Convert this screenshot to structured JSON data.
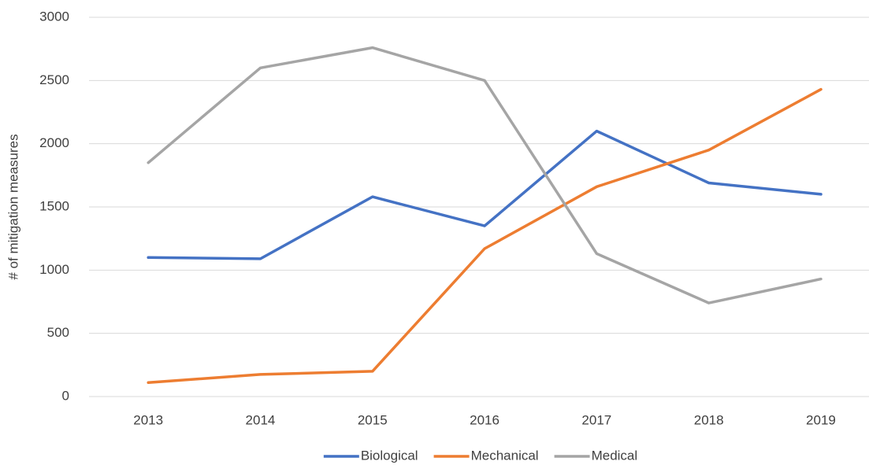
{
  "chart_data": {
    "type": "line",
    "y_label": "# of mitigation measures",
    "categories": [
      "2013",
      "2014",
      "2015",
      "2016",
      "2017",
      "2018",
      "2019"
    ],
    "series": [
      {
        "name": "Biological",
        "color": "#4472c4",
        "values": [
          1100,
          1090,
          1580,
          1350,
          2100,
          1690,
          1600
        ]
      },
      {
        "name": "Mechanical",
        "color": "#ed7d31",
        "values": [
          110,
          175,
          200,
          1170,
          1660,
          1950,
          2430
        ]
      },
      {
        "name": "Medical",
        "color": "#a5a5a5",
        "values": [
          1850,
          2600,
          2760,
          2500,
          1130,
          740,
          930
        ]
      }
    ],
    "ylim": [
      0,
      3000
    ],
    "yticks": [
      0,
      500,
      1000,
      1500,
      2000,
      2500,
      3000
    ],
    "grid": true,
    "legend": "bottom"
  }
}
